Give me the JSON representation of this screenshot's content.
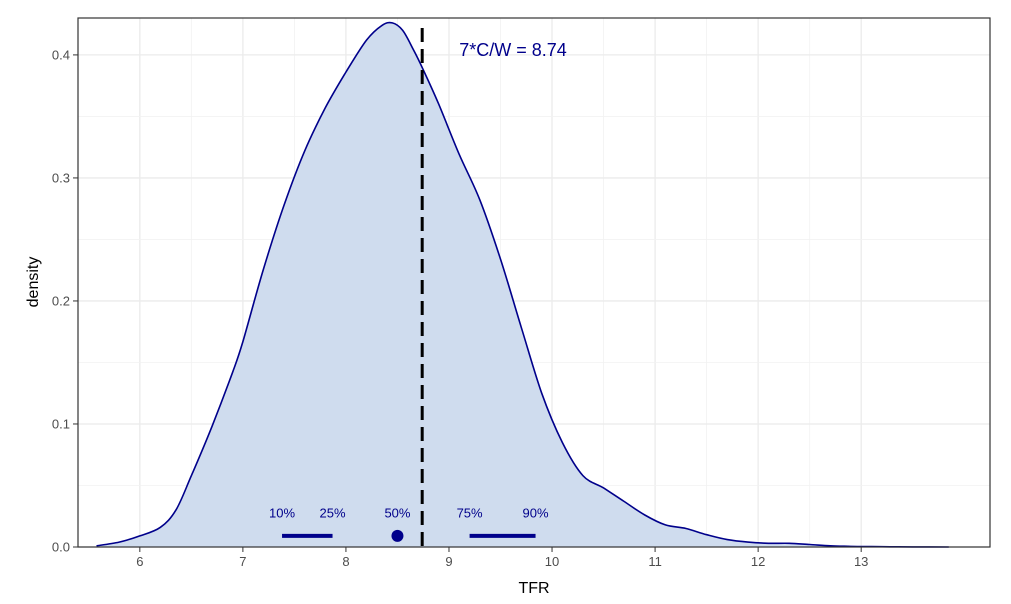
{
  "chart_data": {
    "type": "area",
    "title": "",
    "xlabel": "TFR",
    "ylabel": "density",
    "xlim": [
      5.4,
      14.25
    ],
    "ylim": [
      0,
      0.43
    ],
    "x_ticks": [
      6,
      7,
      8,
      9,
      10,
      11,
      12,
      13
    ],
    "x_tick_labels": [
      "6",
      "7",
      "8",
      "9",
      "10",
      "11",
      "12",
      "13"
    ],
    "y_ticks": [
      0.0,
      0.1,
      0.2,
      0.3,
      0.4
    ],
    "y_tick_labels": [
      "0.0",
      "0.1",
      "0.2",
      "0.3",
      "0.4"
    ],
    "grid": true,
    "legend": "none",
    "fill_color": "#cfdcee",
    "line_color": "#00008b",
    "series": [
      {
        "x": [
          5.58,
          5.8,
          6.0,
          6.2,
          6.35,
          6.5,
          6.7,
          6.9,
          7.0,
          7.2,
          7.4,
          7.6,
          7.8,
          8.0,
          8.2,
          8.35,
          8.45,
          8.55,
          8.65,
          8.75,
          8.9,
          9.1,
          9.3,
          9.5,
          9.7,
          9.9,
          10.1,
          10.3,
          10.5,
          10.7,
          10.9,
          11.1,
          11.3,
          11.5,
          11.7,
          11.9,
          12.1,
          12.3,
          12.5,
          12.7,
          12.9,
          13.1,
          13.3,
          13.5,
          13.85
        ],
        "y": [
          0.001,
          0.004,
          0.009,
          0.016,
          0.03,
          0.058,
          0.098,
          0.142,
          0.167,
          0.226,
          0.278,
          0.322,
          0.357,
          0.386,
          0.412,
          0.424,
          0.426,
          0.42,
          0.405,
          0.388,
          0.36,
          0.319,
          0.282,
          0.234,
          0.179,
          0.125,
          0.085,
          0.058,
          0.048,
          0.037,
          0.026,
          0.018,
          0.015,
          0.01,
          0.006,
          0.004,
          0.003,
          0.003,
          0.002,
          0.001,
          0.0005,
          0.0003,
          0.0002,
          0.0001,
          0.0
        ]
      }
    ],
    "reference_line": {
      "x": 8.74,
      "label": "7*C/W = 8.74",
      "color": "#000000"
    },
    "quantiles": [
      {
        "label": "10%",
        "value": 7.38
      },
      {
        "label": "25%",
        "value": 7.87
      },
      {
        "label": "50%",
        "value": 8.5
      },
      {
        "label": "75%",
        "value": 9.2
      },
      {
        "label": "90%",
        "value": 9.84
      }
    ],
    "quantile_y": 0.009,
    "quantile_label_y": 0.024,
    "quantile_color": "#00008b"
  }
}
